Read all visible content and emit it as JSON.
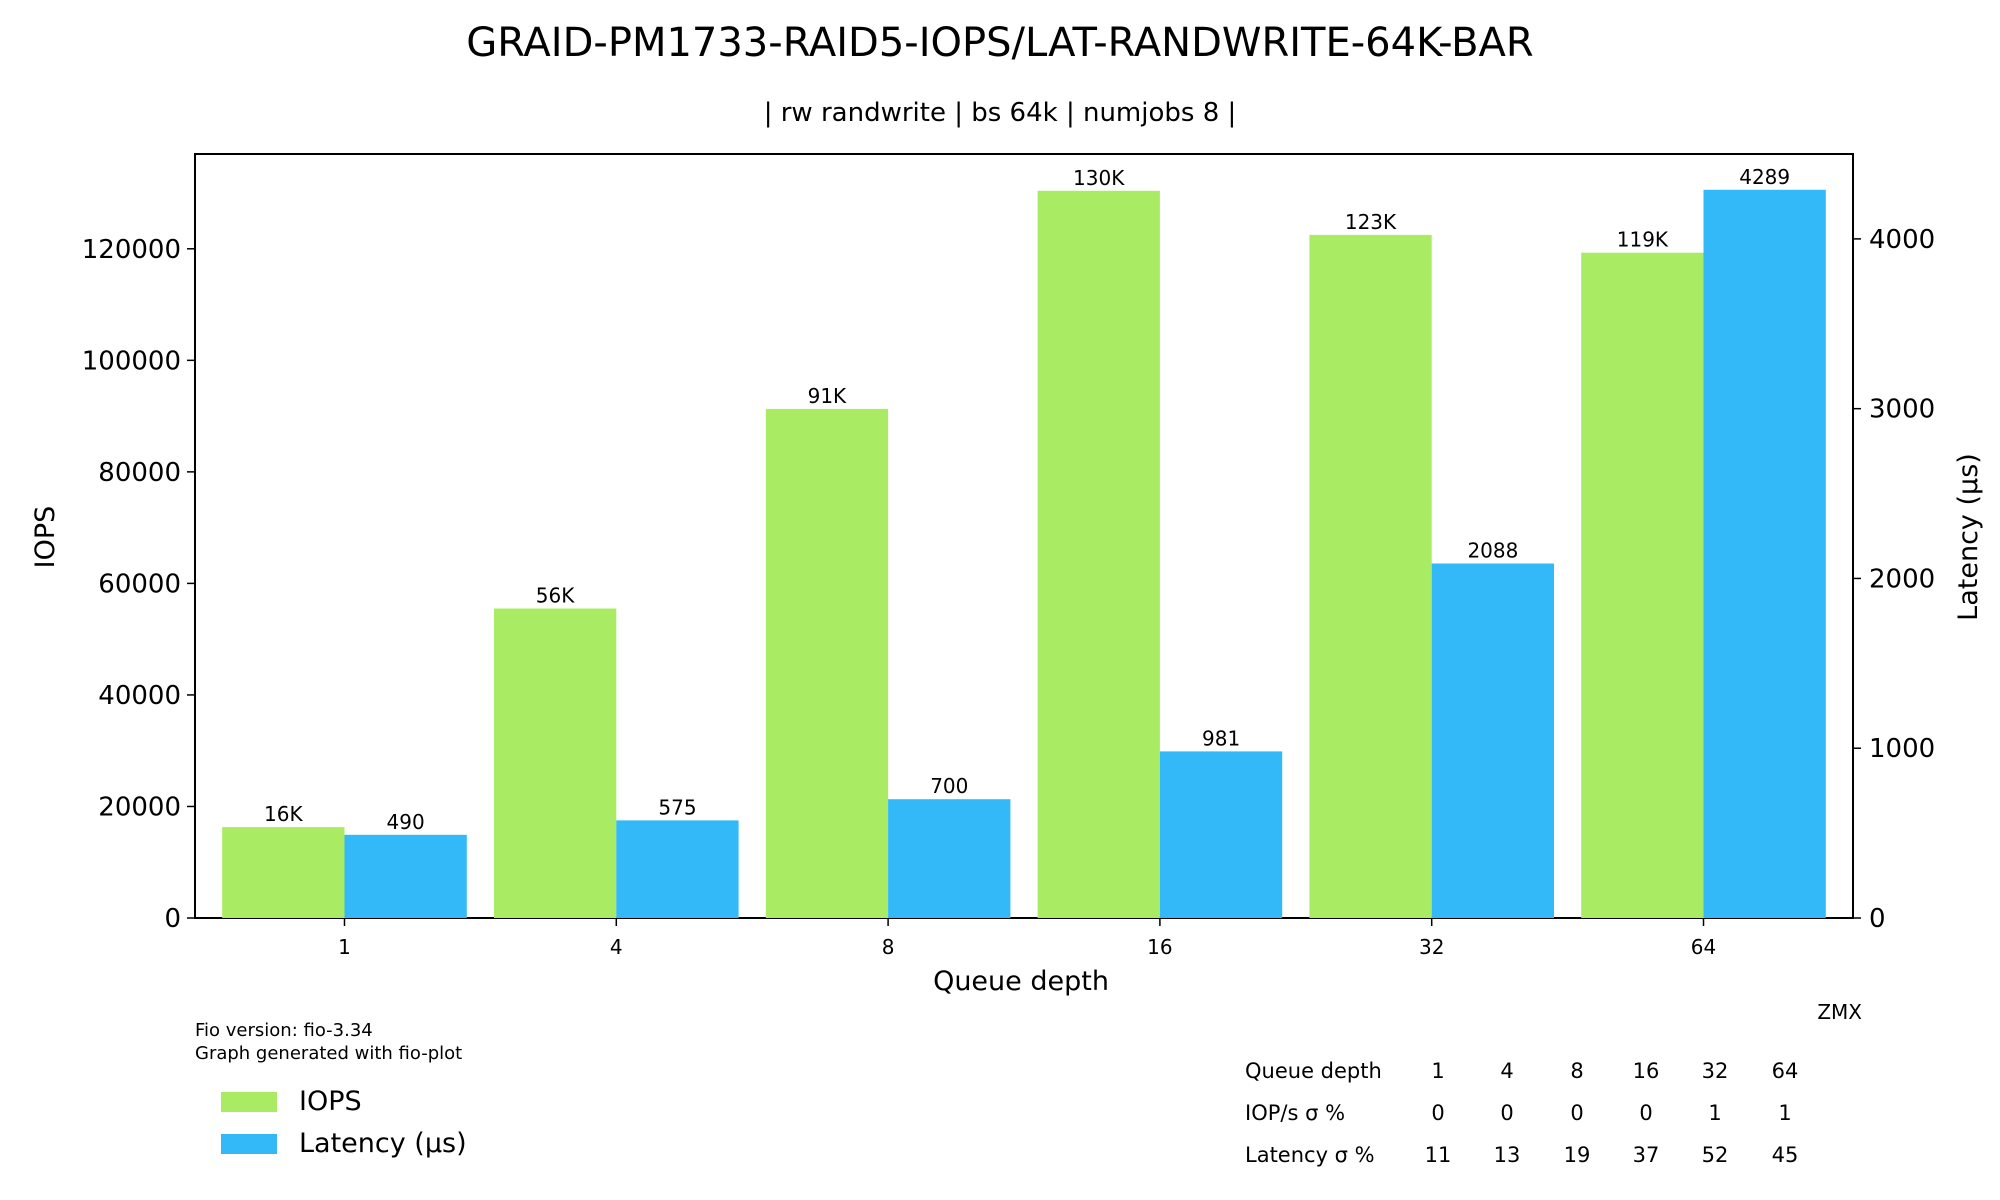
{
  "chart_data": {
    "type": "bar",
    "title": "GRAID-PM1733-RAID5-IOPS/LAT-RANDWRITE-64K-BAR",
    "subtitle": "| rw randwrite | bs 64k | numjobs 8 |",
    "xlabel": "Queue depth",
    "ylabel_left": "IOPS",
    "ylabel_right": "Latency (µs)",
    "categories": [
      "1",
      "4",
      "8",
      "16",
      "32",
      "64"
    ],
    "ylim_left": [
      0,
      137000
    ],
    "ylim_right": [
      0,
      4500
    ],
    "yticks_left": [
      0,
      20000,
      40000,
      60000,
      80000,
      100000,
      120000
    ],
    "yticks_right": [
      0,
      1000,
      2000,
      3000,
      4000
    ],
    "series": [
      {
        "name": "IOPS",
        "axis": "left",
        "color": "#a9ec63",
        "values": [
          16300,
          55500,
          91300,
          130400,
          122500,
          119300
        ],
        "labels": [
          "16K",
          "56K",
          "91K",
          "130K",
          "123K",
          "119K"
        ]
      },
      {
        "name": "Latency (µs)",
        "axis": "right",
        "color": "#34b9f8",
        "values": [
          490,
          575,
          700,
          981,
          2088,
          4289
        ],
        "labels": [
          "490",
          "575",
          "700",
          "981",
          "2088",
          "4289"
        ]
      }
    ],
    "legend_position": "bottom-left",
    "grid": false
  },
  "footer": {
    "fio_version": "Fio version: fio-3.34",
    "generated_with": "Graph generated with fio-plot",
    "author": "ZMX"
  },
  "stats_table": {
    "rows": [
      {
        "label": "Queue depth",
        "values": [
          "1",
          "4",
          "8",
          "16",
          "32",
          "64"
        ]
      },
      {
        "label": "IOP/s σ %",
        "values": [
          "0",
          "0",
          "0",
          "0",
          "1",
          "1"
        ]
      },
      {
        "label": "Latency σ %",
        "values": [
          "11",
          "13",
          "19",
          "37",
          "52",
          "45"
        ]
      }
    ]
  }
}
